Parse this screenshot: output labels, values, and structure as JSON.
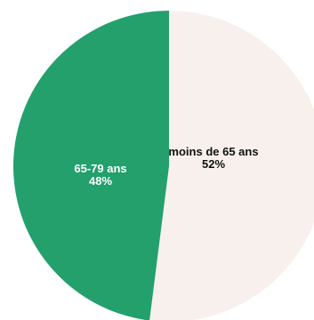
{
  "chart_data": {
    "type": "pie",
    "title": "",
    "slices": [
      {
        "label": "moins de 65 ans",
        "value": 52,
        "value_label": "52%",
        "color": "#f7f0ec",
        "text_color": "#111111"
      },
      {
        "label": "65-79 ans",
        "value": 48,
        "value_label": "48%",
        "color": "#24a06d",
        "text_color": "#ffffff"
      }
    ],
    "start_angle": "12 o'clock",
    "direction": "clockwise",
    "legend": "none"
  }
}
